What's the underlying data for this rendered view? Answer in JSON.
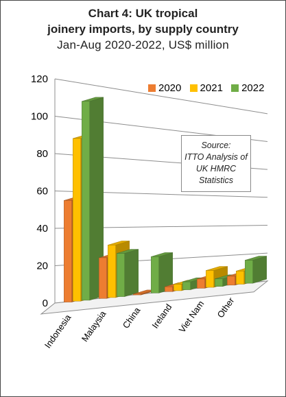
{
  "chart_data": {
    "type": "bar",
    "title_lines": [
      "Chart 4: UK tropical",
      "joinery imports, by supply country",
      "Jan-Aug 2020-2022, US$ million"
    ],
    "categories": [
      "Indonesia",
      "Malaysia",
      "China",
      "Ireland",
      "Viet Nam",
      "Other"
    ],
    "series": [
      {
        "name": "2020",
        "color": "#ed7d31",
        "values": [
          55,
          23,
          0.5,
          3,
          6,
          6
        ]
      },
      {
        "name": "2021",
        "color": "#ffc000",
        "values": [
          89,
          30,
          0,
          4,
          11,
          9
        ]
      },
      {
        "name": "2022",
        "color": "#70ad47",
        "values": [
          110,
          25,
          22,
          5,
          5,
          16
        ]
      }
    ],
    "yticks": [
      0,
      20,
      40,
      60,
      80,
      100,
      120
    ],
    "ylim": [
      0,
      120
    ],
    "legend_position": "top-right",
    "grid": true,
    "annotation": [
      "Source:",
      "ITTO Analysis of",
      "UK HMRC",
      "Statistics"
    ]
  }
}
